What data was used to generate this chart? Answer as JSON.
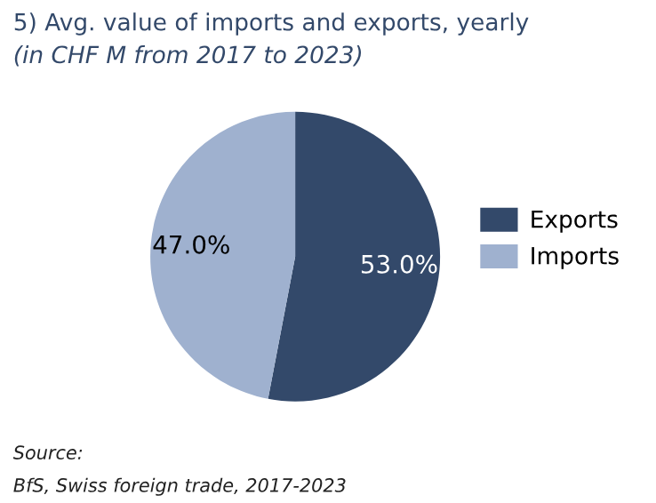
{
  "chart_data": {
    "type": "pie",
    "title": "5) Avg. value of imports and exports, yearly",
    "subtitle": "(in CHF M from 2017 to 2023)",
    "categories": [
      "Exports",
      "Imports"
    ],
    "values": [
      53.0,
      47.0
    ],
    "colors": [
      "#33496a",
      "#9fb1cf"
    ],
    "value_labels": [
      "53.0%",
      "47.0%"
    ],
    "legend": "right",
    "annotations": [
      "Source:",
      "BfS, Swiss foreign trade, 2017-2023"
    ]
  }
}
